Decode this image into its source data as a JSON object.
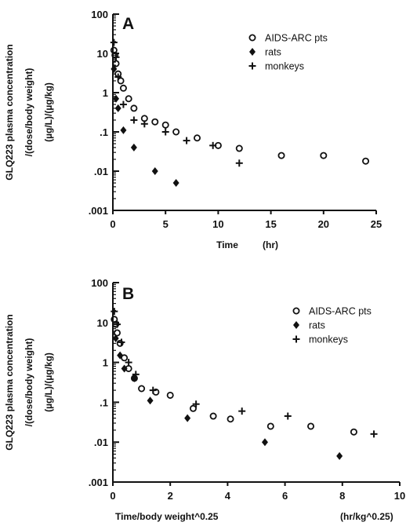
{
  "chart_data": [
    {
      "type": "scatter",
      "panel": "A",
      "ylabel_lines": [
        "GLQ223 plasma concentration",
        "/(dose/body weight)",
        "(µg/L)/(µg/kg)"
      ],
      "xlabel": "Time",
      "xunit": "(hr)",
      "xlim": [
        0,
        25
      ],
      "ylim": [
        0.001,
        100
      ],
      "yscale": "log",
      "xticks": [
        0,
        5,
        10,
        15,
        20,
        25
      ],
      "xtick_labels": [
        "0",
        "5",
        "10",
        "15",
        "20",
        "25"
      ],
      "yticks": [
        0.001,
        0.01,
        0.1,
        1,
        10,
        100
      ],
      "ytick_labels": [
        ".001",
        ".01",
        ".1",
        "1",
        "10",
        "100"
      ],
      "legend_position": "top-right",
      "series": [
        {
          "name": "AIDS-ARC pts",
          "marker": "open-circle",
          "points": [
            [
              0.1,
              12
            ],
            [
              0.2,
              9
            ],
            [
              0.3,
              5.5
            ],
            [
              0.5,
              3
            ],
            [
              0.75,
              2
            ],
            [
              1,
              1.3
            ],
            [
              1.5,
              0.7
            ],
            [
              2,
              0.4
            ],
            [
              3,
              0.22
            ],
            [
              4,
              0.18
            ],
            [
              5,
              0.15
            ],
            [
              6,
              0.1
            ],
            [
              8,
              0.07
            ],
            [
              10,
              0.045
            ],
            [
              12,
              0.038
            ],
            [
              16,
              0.025
            ],
            [
              20,
              0.025
            ],
            [
              24,
              0.018
            ]
          ]
        },
        {
          "name": "rats",
          "marker": "filled-diamond",
          "points": [
            [
              0.1,
              4
            ],
            [
              0.3,
              0.7
            ],
            [
              0.5,
              0.4
            ],
            [
              1,
              0.11
            ],
            [
              2,
              0.04
            ],
            [
              4,
              0.01
            ],
            [
              6,
              0.005
            ]
          ]
        },
        {
          "name": "monkeys",
          "marker": "plus",
          "points": [
            [
              0.1,
              19
            ],
            [
              0.3,
              8
            ],
            [
              0.5,
              2.5
            ],
            [
              1,
              0.5
            ],
            [
              2,
              0.2
            ],
            [
              3,
              0.16
            ],
            [
              5,
              0.1
            ],
            [
              7,
              0.06
            ],
            [
              9.5,
              0.045
            ],
            [
              12,
              0.016
            ]
          ]
        }
      ]
    },
    {
      "type": "scatter",
      "panel": "B",
      "ylabel_lines": [
        "GLQ223 plasma concentration",
        "/(dose/body weight)",
        "(µg/L)/(µg/kg)"
      ],
      "xlabel": "Time/body weight^0.25",
      "xunit": "(hr/kg^0.25)",
      "xlim": [
        0,
        10
      ],
      "ylim": [
        0.001,
        100
      ],
      "yscale": "log",
      "xticks": [
        0,
        2,
        4,
        6,
        8,
        10
      ],
      "xtick_labels": [
        "0",
        "2",
        "4",
        "6",
        "8",
        "10"
      ],
      "yticks": [
        0.001,
        0.01,
        0.1,
        1,
        10,
        100
      ],
      "ytick_labels": [
        ".001",
        ".01",
        ".1",
        "1",
        "10",
        "100"
      ],
      "legend_position": "top-right",
      "series": [
        {
          "name": "AIDS-ARC pts",
          "marker": "open-circle",
          "points": [
            [
              0.05,
              12
            ],
            [
              0.1,
              9
            ],
            [
              0.15,
              5.5
            ],
            [
              0.25,
              3
            ],
            [
              0.4,
              1.3
            ],
            [
              0.55,
              0.7
            ],
            [
              0.75,
              0.4
            ],
            [
              1.0,
              0.22
            ],
            [
              1.5,
              0.18
            ],
            [
              2.0,
              0.15
            ],
            [
              2.8,
              0.07
            ],
            [
              3.5,
              0.045
            ],
            [
              4.1,
              0.038
            ],
            [
              5.5,
              0.025
            ],
            [
              6.9,
              0.025
            ],
            [
              8.4,
              0.018
            ]
          ]
        },
        {
          "name": "rats",
          "marker": "filled-diamond",
          "points": [
            [
              0.1,
              4
            ],
            [
              0.25,
              1.5
            ],
            [
              0.4,
              0.7
            ],
            [
              0.75,
              0.4
            ],
            [
              1.3,
              0.11
            ],
            [
              2.6,
              0.04
            ],
            [
              5.3,
              0.01
            ],
            [
              7.9,
              0.0045
            ]
          ]
        },
        {
          "name": "monkeys",
          "marker": "plus",
          "points": [
            [
              0.05,
              19
            ],
            [
              0.15,
              9
            ],
            [
              0.3,
              3.2
            ],
            [
              0.55,
              1
            ],
            [
              0.8,
              0.5
            ],
            [
              1.4,
              0.2
            ],
            [
              2.9,
              0.09
            ],
            [
              4.5,
              0.06
            ],
            [
              6.1,
              0.045
            ],
            [
              9.1,
              0.016
            ]
          ]
        }
      ]
    }
  ]
}
